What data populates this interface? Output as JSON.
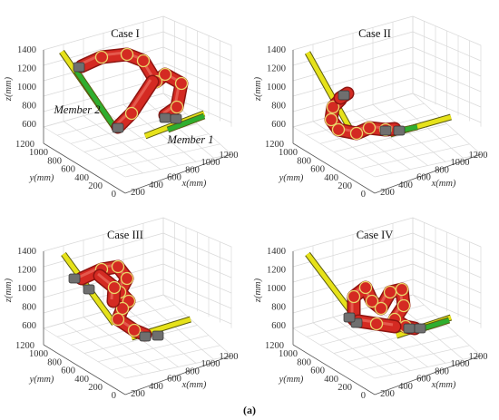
{
  "figure_label": "(a)",
  "axes": {
    "z_ticks": [
      "1400",
      "1200",
      "1000",
      "800",
      "600"
    ],
    "y_ticks": [
      "1200",
      "1000",
      "800",
      "600",
      "400",
      "200",
      "0"
    ],
    "x_ticks": [
      "200",
      "400",
      "600",
      "800",
      "1000",
      "1200"
    ],
    "z_label": "z(mm)",
    "y_label": "y(mm)",
    "x_label": "x(mm)"
  },
  "panels": [
    {
      "title": "Case I",
      "member_labels": [
        "Member 2",
        "Member 1"
      ]
    },
    {
      "title": "Case II",
      "member_labels": []
    },
    {
      "title": "Case III",
      "member_labels": []
    },
    {
      "title": "Case IV",
      "member_labels": []
    }
  ],
  "colors": {
    "robot_link": "#d42a22",
    "robot_joint": "#6f6f6f",
    "member_yellow": "#e6e21a",
    "member_green": "#2fae2f",
    "grid": "#d9d9d9"
  }
}
